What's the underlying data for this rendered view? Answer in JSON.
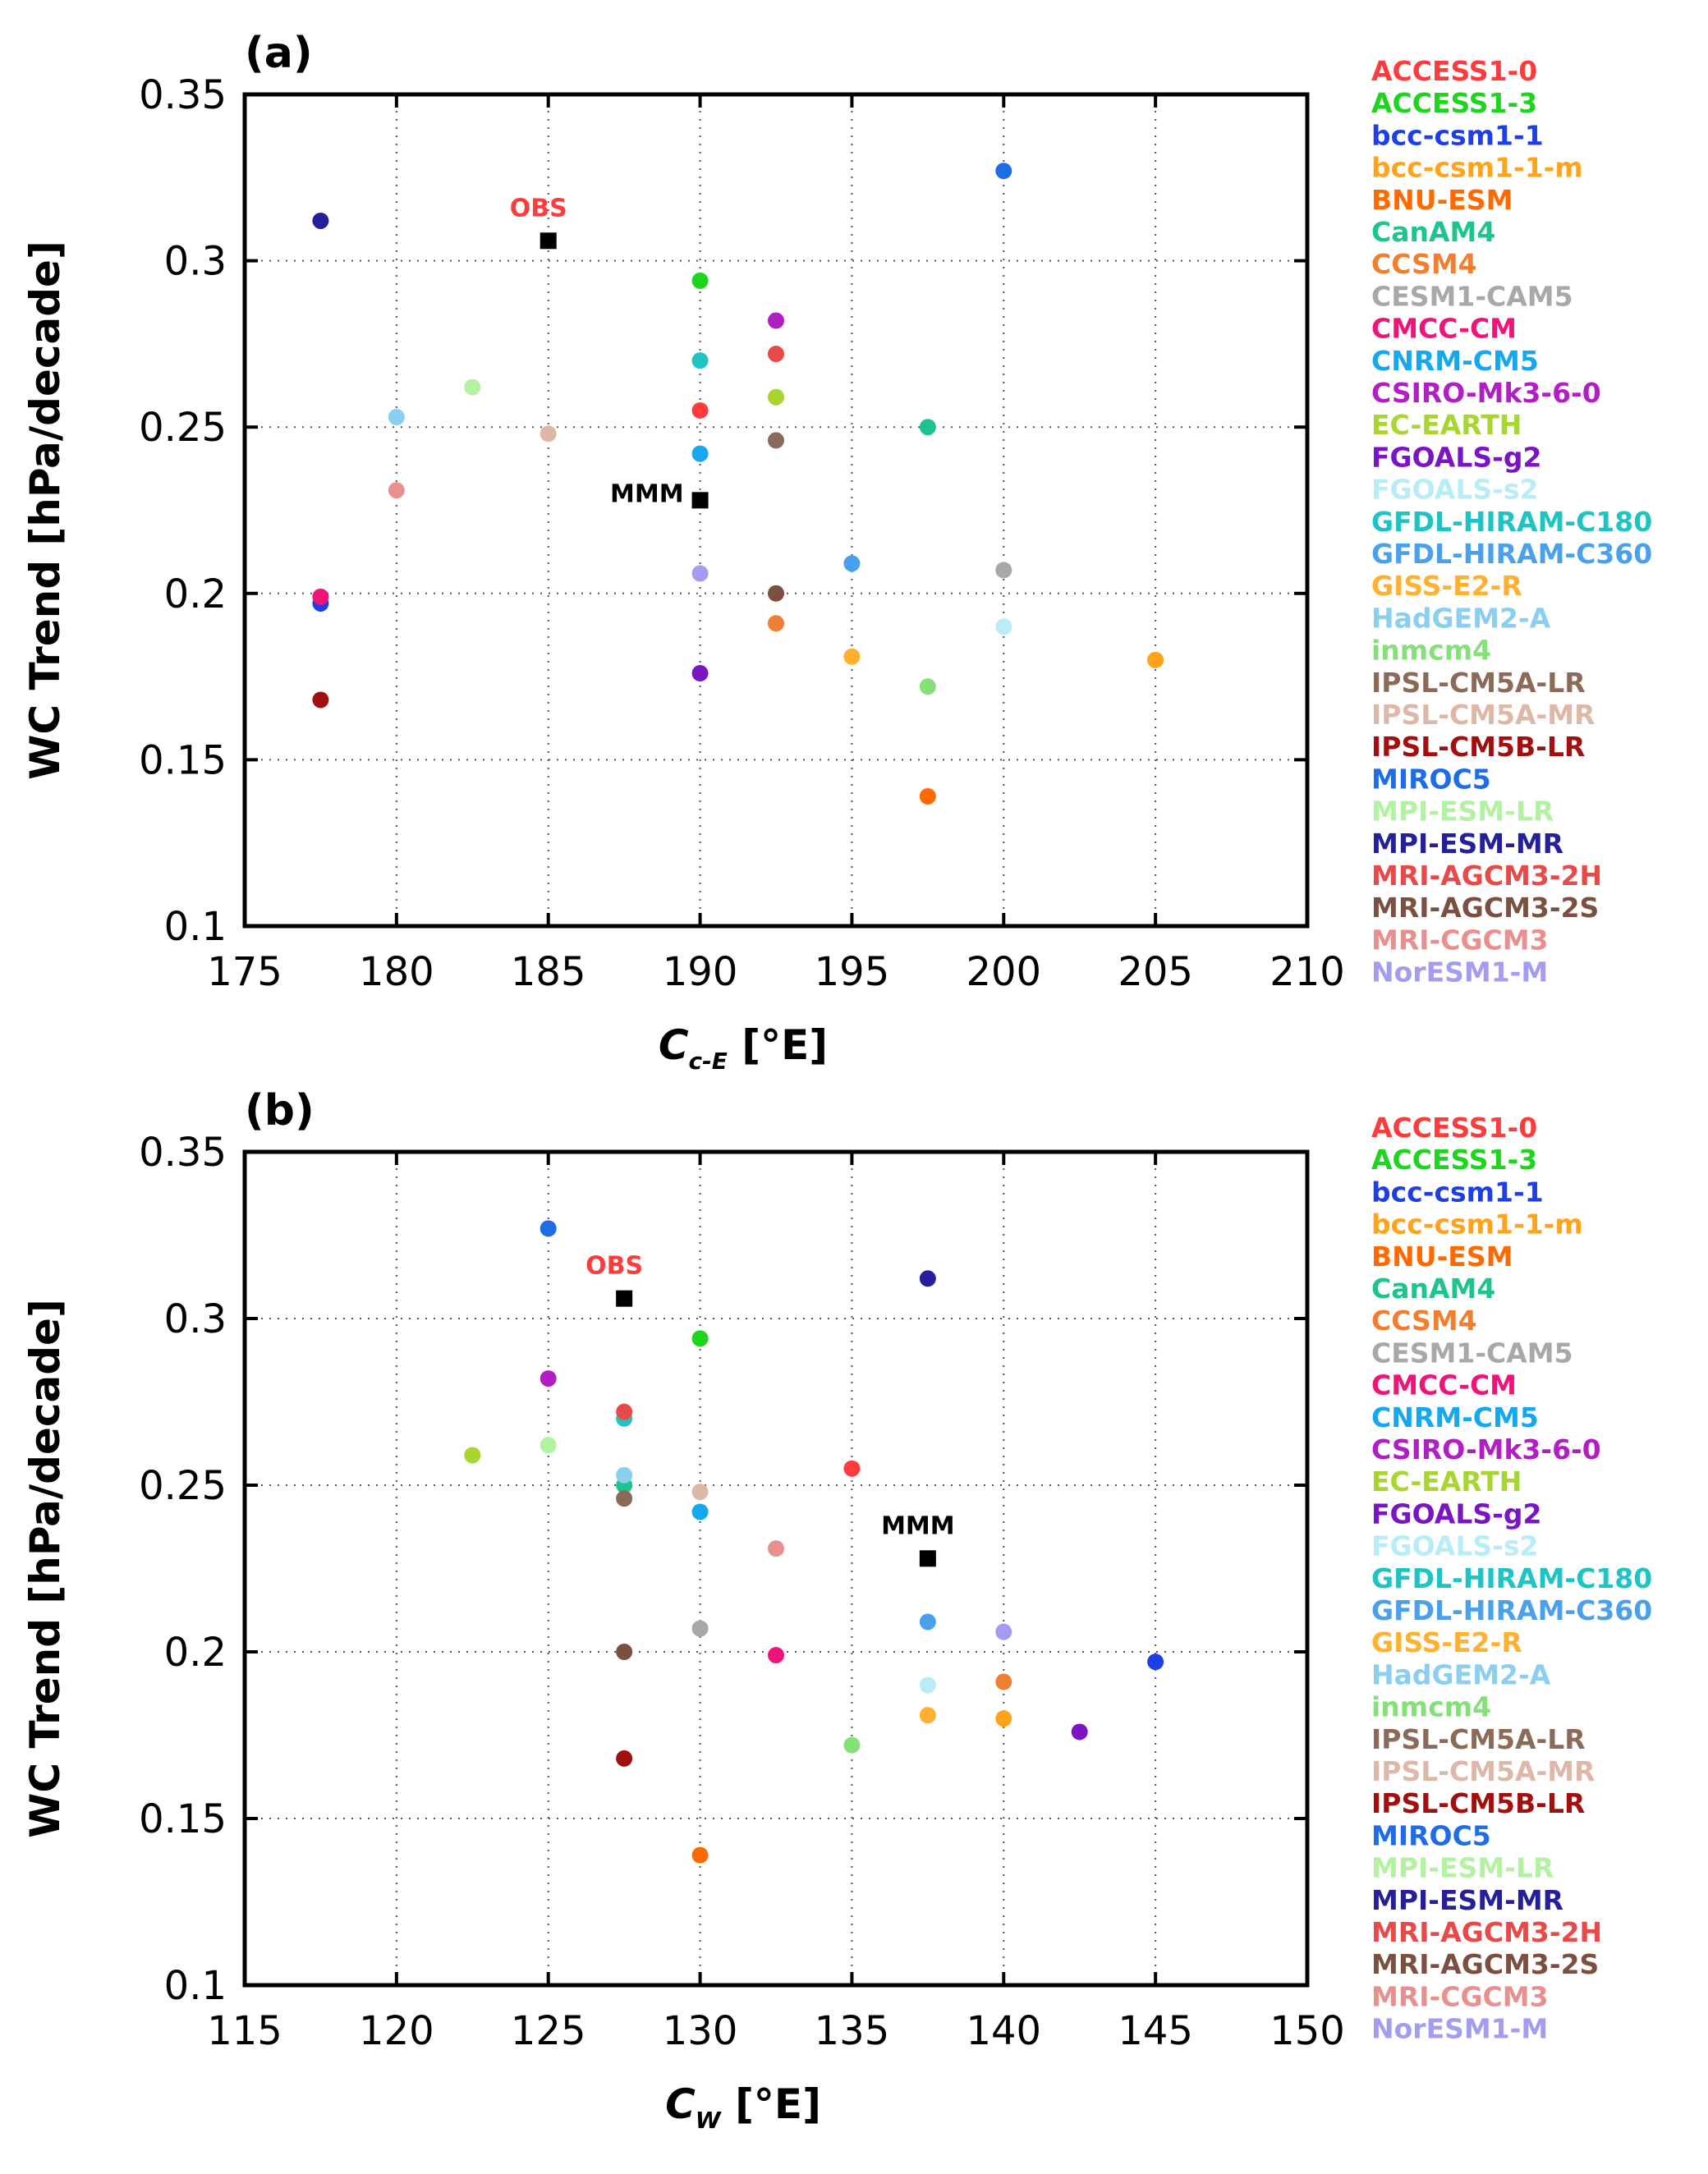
{
  "figure": {
    "colors": {
      "ACCESS1-0": "#ff3b3b",
      "ACCESS1-3": "#1ed51e",
      "bcc-csm1-1": "#1f3fe6",
      "bcc-csm1-1-m": "#ffa31a",
      "BNU-ESM": "#ff6a00",
      "CanAM4": "#1ec48f",
      "CCSM4": "#f08030",
      "CESM1-CAM5": "#a8a8a8",
      "CMCC-CM": "#f0147a",
      "CNRM-CM5": "#14a8f0",
      "CSIRO-Mk3-6-0": "#b01ec4",
      "EC-EARTH": "#a8d530",
      "FGOALS-g2": "#7a14c4",
      "FGOALS-s2": "#b8ecf6",
      "GFDL-HIRAM-C180": "#1ec4c4",
      "GFDL-HIRAM-C360": "#4aa0ea",
      "GISS-E2-R": "#ffb030",
      "HadGEM2-A": "#8acff0",
      "inmcm4": "#86e07a",
      "IPSL-CM5A-LR": "#8b6a5a",
      "IPSL-CM5A-MR": "#ddb8a8",
      "IPSL-CM5B-LR": "#a30f0f",
      "MIROC5": "#1e6de6",
      "MPI-ESM-LR": "#b2f2a2",
      "MPI-ESM-MR": "#25209a",
      "MRI-AGCM3-2H": "#e84a4a",
      "MRI-AGCM3-2S": "#7b5040",
      "MRI-CGCM3": "#e89090",
      "NorESM1-M": "#a39cf0",
      "OBS": "#ff3b3b",
      "MMM": "#000000"
    }
  },
  "chart_data": [
    {
      "type": "scatter",
      "panel_label": "(a)",
      "xlabel": "C",
      "xlabel_sub": "c-E",
      "xlabel_unit": "[°E]",
      "ylabel": "WC Trend [hPa/decade]",
      "xlim": [
        175,
        210
      ],
      "ylim": [
        0.1,
        0.35
      ],
      "xticks": [
        175,
        180,
        185,
        190,
        195,
        200,
        205,
        210
      ],
      "yticks": [
        0.1,
        0.15,
        0.2,
        0.25,
        0.3,
        0.35
      ],
      "xtick_labels": [
        "175",
        "180",
        "185",
        "190",
        "195",
        "200",
        "205",
        "210"
      ],
      "ytick_labels": [
        "0.1",
        "0.15",
        "0.2",
        "0.25",
        "0.3",
        "0.35"
      ],
      "grid": "dotted",
      "legend": [
        "ACCESS1-0",
        "ACCESS1-3",
        "bcc-csm1-1",
        "bcc-csm1-1-m",
        "BNU-ESM",
        "CanAM4",
        "CCSM4",
        "CESM1-CAM5",
        "CMCC-CM",
        "CNRM-CM5",
        "CSIRO-Mk3-6-0",
        "EC-EARTH",
        "FGOALS-g2",
        "FGOALS-s2",
        "GFDL-HIRAM-C180",
        "GFDL-HIRAM-C360",
        "GISS-E2-R",
        "HadGEM2-A",
        "inmcm4",
        "IPSL-CM5A-LR",
        "IPSL-CM5A-MR",
        "IPSL-CM5B-LR",
        "MIROC5",
        "MPI-ESM-LR",
        "MPI-ESM-MR",
        "MRI-AGCM3-2H",
        "MRI-AGCM3-2S",
        "MRI-CGCM3",
        "NorESM1-M"
      ],
      "points": [
        {
          "model": "ACCESS1-0",
          "x": 190,
          "y": 0.255
        },
        {
          "model": "ACCESS1-3",
          "x": 190,
          "y": 0.294
        },
        {
          "model": "bcc-csm1-1",
          "x": 177.5,
          "y": 0.197
        },
        {
          "model": "bcc-csm1-1-m",
          "x": 205,
          "y": 0.18
        },
        {
          "model": "BNU-ESM",
          "x": 197.5,
          "y": 0.139
        },
        {
          "model": "CanAM4",
          "x": 197.5,
          "y": 0.25
        },
        {
          "model": "CCSM4",
          "x": 192.5,
          "y": 0.191
        },
        {
          "model": "CESM1-CAM5",
          "x": 200,
          "y": 0.207
        },
        {
          "model": "CMCC-CM",
          "x": 177.5,
          "y": 0.199
        },
        {
          "model": "CNRM-CM5",
          "x": 190,
          "y": 0.242
        },
        {
          "model": "CSIRO-Mk3-6-0",
          "x": 192.5,
          "y": 0.282
        },
        {
          "model": "EC-EARTH",
          "x": 192.5,
          "y": 0.259
        },
        {
          "model": "FGOALS-g2",
          "x": 190,
          "y": 0.176
        },
        {
          "model": "FGOALS-s2",
          "x": 200,
          "y": 0.19
        },
        {
          "model": "GFDL-HIRAM-C180",
          "x": 190,
          "y": 0.27
        },
        {
          "model": "GFDL-HIRAM-C360",
          "x": 195,
          "y": 0.209
        },
        {
          "model": "GISS-E2-R",
          "x": 195,
          "y": 0.181
        },
        {
          "model": "HadGEM2-A",
          "x": 180,
          "y": 0.253
        },
        {
          "model": "inmcm4",
          "x": 197.5,
          "y": 0.172
        },
        {
          "model": "IPSL-CM5A-LR",
          "x": 192.5,
          "y": 0.246
        },
        {
          "model": "IPSL-CM5A-MR",
          "x": 185,
          "y": 0.248
        },
        {
          "model": "IPSL-CM5B-LR",
          "x": 177.5,
          "y": 0.168
        },
        {
          "model": "MIROC5",
          "x": 200,
          "y": 0.327
        },
        {
          "model": "MPI-ESM-LR",
          "x": 182.5,
          "y": 0.262
        },
        {
          "model": "MPI-ESM-MR",
          "x": 177.5,
          "y": 0.312
        },
        {
          "model": "MRI-AGCM3-2H",
          "x": 192.5,
          "y": 0.272
        },
        {
          "model": "MRI-AGCM3-2S",
          "x": 192.5,
          "y": 0.2
        },
        {
          "model": "MRI-CGCM3",
          "x": 180,
          "y": 0.231
        },
        {
          "model": "NorESM1-M",
          "x": 190,
          "y": 0.206
        }
      ],
      "markers": [
        {
          "label": "OBS",
          "x": 185,
          "y": 0.306,
          "label_pos": "above"
        },
        {
          "label": "MMM",
          "x": 190,
          "y": 0.228,
          "label_pos": "left"
        }
      ]
    },
    {
      "type": "scatter",
      "panel_label": "(b)",
      "xlabel": "C",
      "xlabel_sub": "W",
      "xlabel_unit": "[°E]",
      "ylabel": "WC Trend [hPa/decade]",
      "xlim": [
        115,
        150
      ],
      "ylim": [
        0.1,
        0.35
      ],
      "xticks": [
        115,
        120,
        125,
        130,
        135,
        140,
        145,
        150
      ],
      "yticks": [
        0.1,
        0.15,
        0.2,
        0.25,
        0.3,
        0.35
      ],
      "xtick_labels": [
        "115",
        "120",
        "125",
        "130",
        "135",
        "140",
        "145",
        "150"
      ],
      "ytick_labels": [
        "0.1",
        "0.15",
        "0.2",
        "0.25",
        "0.3",
        "0.35"
      ],
      "grid": "dotted",
      "legend": [
        "ACCESS1-0",
        "ACCESS1-3",
        "bcc-csm1-1",
        "bcc-csm1-1-m",
        "BNU-ESM",
        "CanAM4",
        "CCSM4",
        "CESM1-CAM5",
        "CMCC-CM",
        "CNRM-CM5",
        "CSIRO-Mk3-6-0",
        "EC-EARTH",
        "FGOALS-g2",
        "FGOALS-s2",
        "GFDL-HIRAM-C180",
        "GFDL-HIRAM-C360",
        "GISS-E2-R",
        "HadGEM2-A",
        "inmcm4",
        "IPSL-CM5A-LR",
        "IPSL-CM5A-MR",
        "IPSL-CM5B-LR",
        "MIROC5",
        "MPI-ESM-LR",
        "MPI-ESM-MR",
        "MRI-AGCM3-2H",
        "MRI-AGCM3-2S",
        "MRI-CGCM3",
        "NorESM1-M"
      ],
      "points": [
        {
          "model": "ACCESS1-0",
          "x": 135,
          "y": 0.255
        },
        {
          "model": "ACCESS1-3",
          "x": 130,
          "y": 0.294
        },
        {
          "model": "bcc-csm1-1",
          "x": 145,
          "y": 0.197
        },
        {
          "model": "bcc-csm1-1-m",
          "x": 140,
          "y": 0.18
        },
        {
          "model": "BNU-ESM",
          "x": 130,
          "y": 0.139
        },
        {
          "model": "CanAM4",
          "x": 127.5,
          "y": 0.25
        },
        {
          "model": "CCSM4",
          "x": 140,
          "y": 0.191
        },
        {
          "model": "CESM1-CAM5",
          "x": 130,
          "y": 0.207
        },
        {
          "model": "CMCC-CM",
          "x": 132.5,
          "y": 0.199
        },
        {
          "model": "CNRM-CM5",
          "x": 130,
          "y": 0.242
        },
        {
          "model": "CSIRO-Mk3-6-0",
          "x": 125,
          "y": 0.282
        },
        {
          "model": "EC-EARTH",
          "x": 122.5,
          "y": 0.259
        },
        {
          "model": "FGOALS-g2",
          "x": 142.5,
          "y": 0.176
        },
        {
          "model": "FGOALS-s2",
          "x": 137.5,
          "y": 0.19
        },
        {
          "model": "GFDL-HIRAM-C180",
          "x": 127.5,
          "y": 0.27
        },
        {
          "model": "GFDL-HIRAM-C360",
          "x": 137.5,
          "y": 0.209
        },
        {
          "model": "GISS-E2-R",
          "x": 137.5,
          "y": 0.181
        },
        {
          "model": "HadGEM2-A",
          "x": 127.5,
          "y": 0.253
        },
        {
          "model": "inmcm4",
          "x": 135,
          "y": 0.172
        },
        {
          "model": "IPSL-CM5A-LR",
          "x": 127.5,
          "y": 0.246
        },
        {
          "model": "IPSL-CM5A-MR",
          "x": 130,
          "y": 0.248
        },
        {
          "model": "IPSL-CM5B-LR",
          "x": 127.5,
          "y": 0.168
        },
        {
          "model": "MIROC5",
          "x": 125,
          "y": 0.327
        },
        {
          "model": "MPI-ESM-LR",
          "x": 125,
          "y": 0.262
        },
        {
          "model": "MPI-ESM-MR",
          "x": 137.5,
          "y": 0.312
        },
        {
          "model": "MRI-AGCM3-2H",
          "x": 127.5,
          "y": 0.272
        },
        {
          "model": "MRI-AGCM3-2S",
          "x": 127.5,
          "y": 0.2
        },
        {
          "model": "MRI-CGCM3",
          "x": 132.5,
          "y": 0.231
        },
        {
          "model": "NorESM1-M",
          "x": 140,
          "y": 0.206
        }
      ],
      "markers": [
        {
          "label": "OBS",
          "x": 127.5,
          "y": 0.306,
          "label_pos": "above"
        },
        {
          "label": "MMM",
          "x": 137.5,
          "y": 0.228,
          "label_pos": "above"
        }
      ]
    }
  ]
}
